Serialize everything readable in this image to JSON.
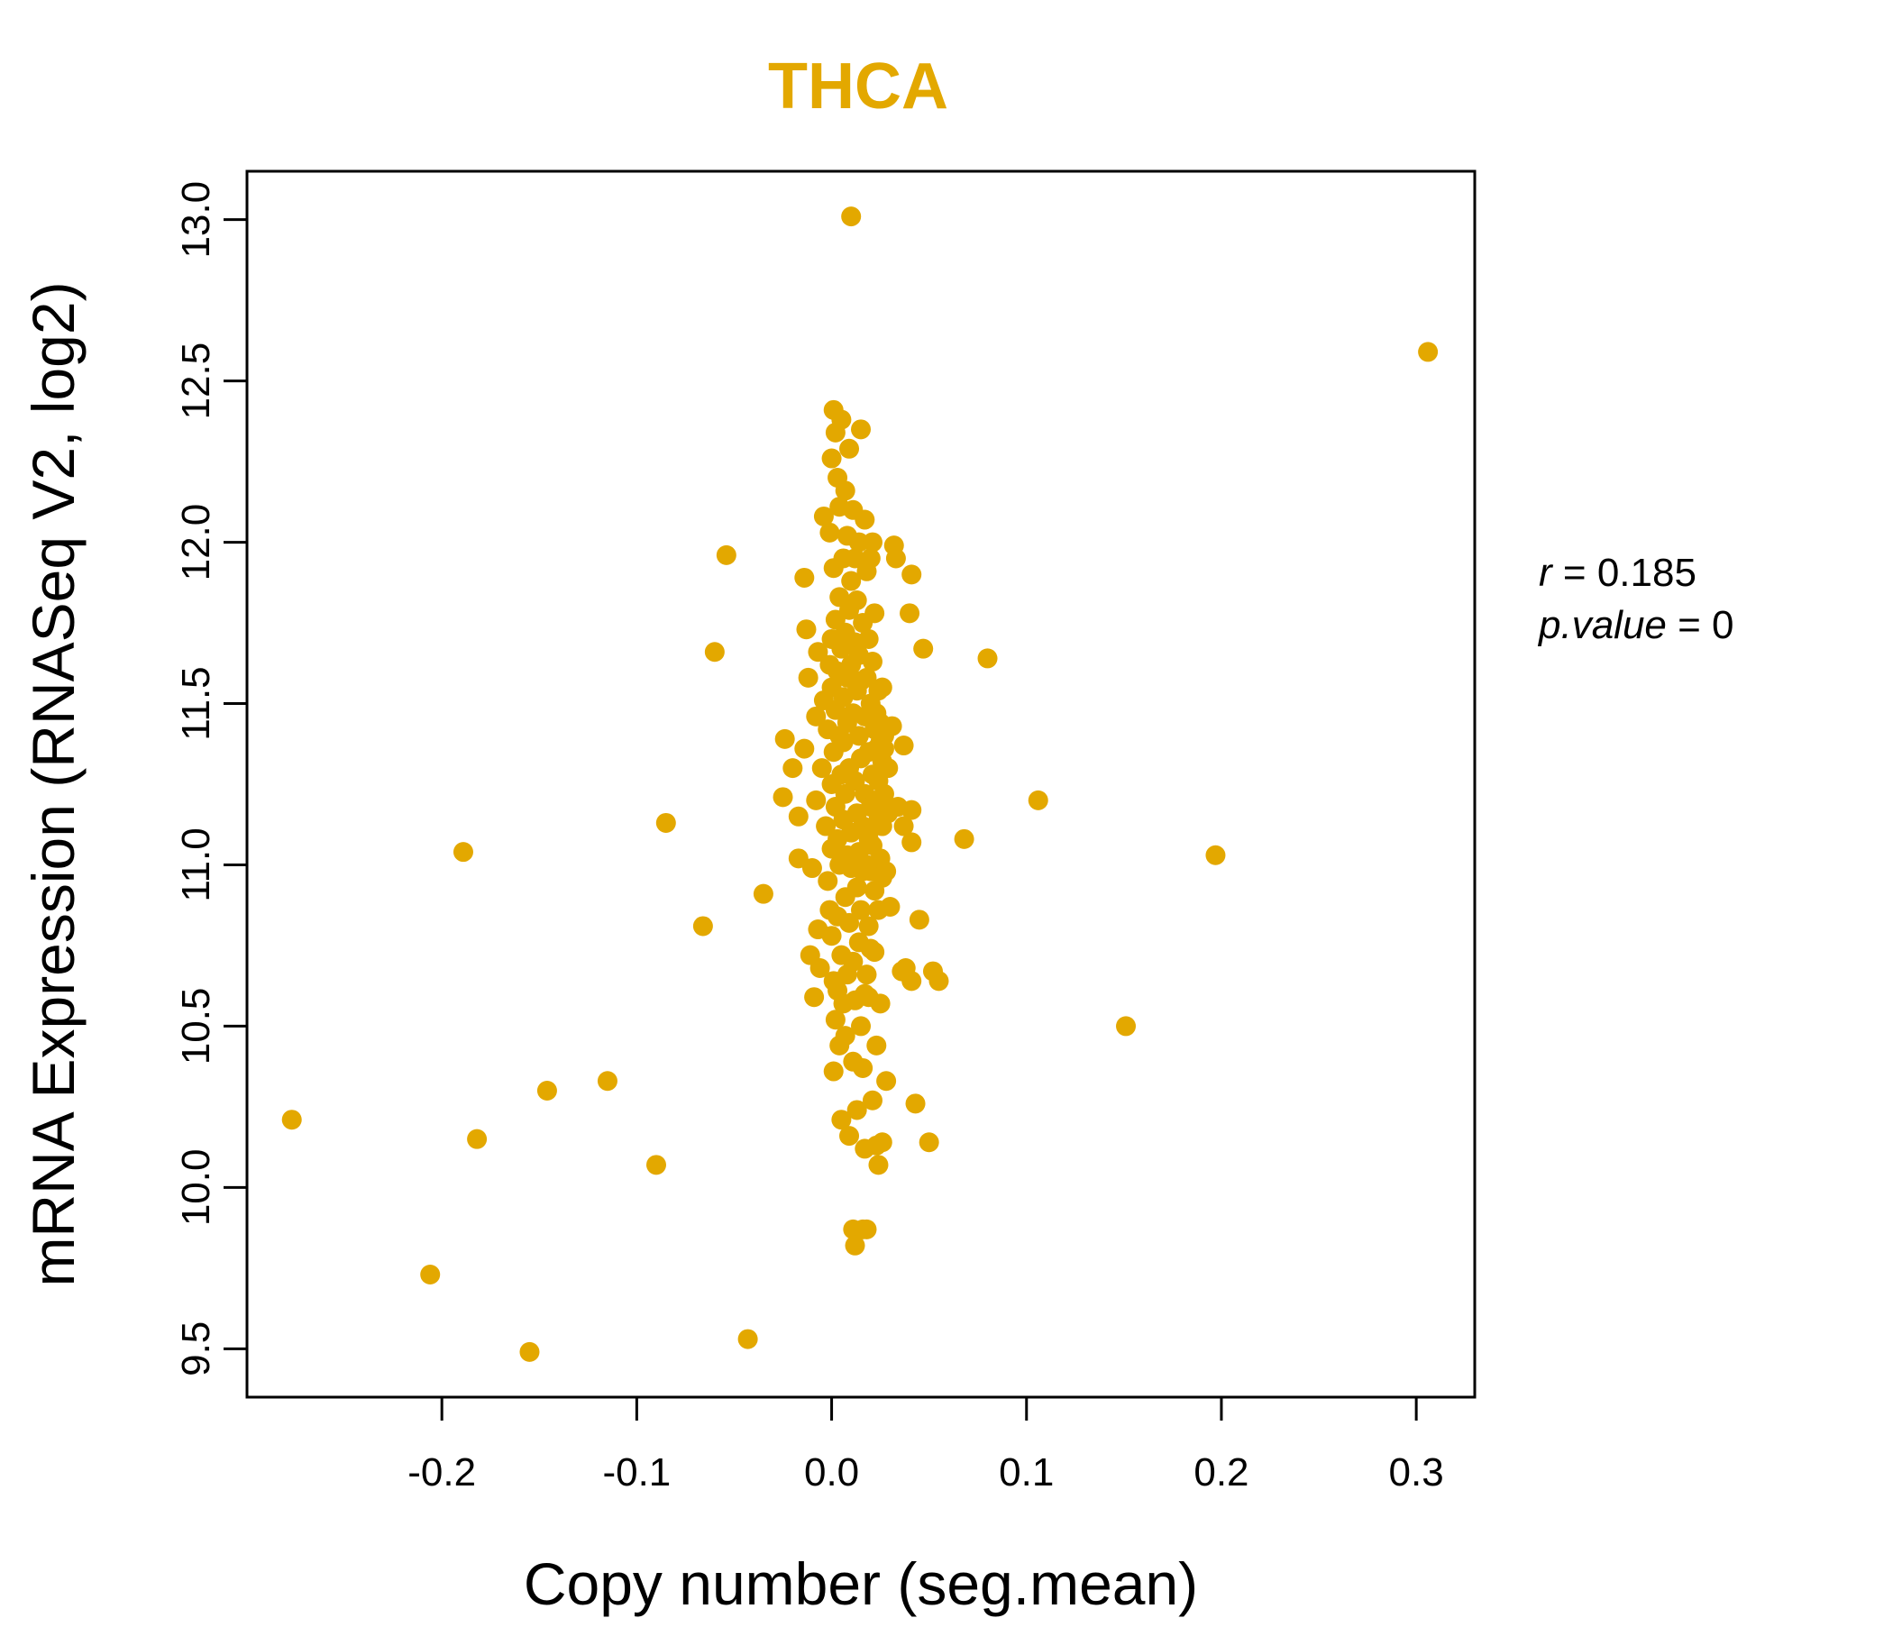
{
  "chart_data": {
    "type": "scatter",
    "title": "THCA",
    "xlabel": "Copy number (seg.mean)",
    "ylabel": "mRNA Expression (RNASeq V2, log2)",
    "xlim": [
      -0.3,
      0.33
    ],
    "ylim": [
      9.35,
      13.15
    ],
    "xticks": [
      -0.2,
      -0.1,
      0.0,
      0.1,
      0.2,
      0.3
    ],
    "xtick_labels": [
      "-0.2",
      "-0.1",
      "0.0",
      "0.1",
      "0.2",
      "0.3"
    ],
    "yticks": [
      9.5,
      10.0,
      10.5,
      11.0,
      11.5,
      12.0,
      12.5,
      13.0
    ],
    "ytick_labels": [
      "9.5",
      "10.0",
      "10.5",
      "11.0",
      "11.5",
      "12.0",
      "12.5",
      "13.0"
    ],
    "point_color": "#E3A800",
    "stats": {
      "r_label": "r",
      "r_value": "0.185",
      "p_label": "p.value",
      "p_value": "0"
    },
    "points": [
      [
        -0.277,
        10.21
      ],
      [
        -0.206,
        9.73
      ],
      [
        -0.189,
        11.04
      ],
      [
        -0.182,
        10.15
      ],
      [
        -0.155,
        9.49
      ],
      [
        -0.146,
        10.3
      ],
      [
        -0.115,
        10.33
      ],
      [
        -0.09,
        10.07
      ],
      [
        -0.085,
        11.13
      ],
      [
        -0.066,
        10.81
      ],
      [
        -0.06,
        11.66
      ],
      [
        -0.054,
        11.96
      ],
      [
        -0.043,
        9.53
      ],
      [
        -0.035,
        10.91
      ],
      [
        -0.024,
        11.39
      ],
      [
        -0.025,
        11.21
      ],
      [
        -0.02,
        11.3
      ],
      [
        -0.017,
        11.15
      ],
      [
        -0.017,
        11.02
      ],
      [
        -0.014,
        11.36
      ],
      [
        -0.014,
        11.89
      ],
      [
        -0.013,
        11.73
      ],
      [
        -0.012,
        11.58
      ],
      [
        -0.011,
        10.72
      ],
      [
        -0.01,
        10.99
      ],
      [
        -0.009,
        10.59
      ],
      [
        -0.008,
        11.46
      ],
      [
        -0.008,
        11.2
      ],
      [
        -0.007,
        10.8
      ],
      [
        -0.007,
        11.66
      ],
      [
        -0.006,
        10.68
      ],
      [
        -0.005,
        11.3
      ],
      [
        -0.004,
        11.51
      ],
      [
        -0.004,
        12.08
      ],
      [
        -0.003,
        11.12
      ],
      [
        -0.002,
        10.95
      ],
      [
        -0.002,
        11.42
      ],
      [
        -0.001,
        12.03
      ],
      [
        -0.001,
        10.86
      ],
      [
        -0.001,
        11.62
      ],
      [
        0.0,
        11.7
      ],
      [
        0.0,
        11.25
      ],
      [
        0.0,
        10.78
      ],
      [
        0.0,
        12.26
      ],
      [
        0.0,
        11.55
      ],
      [
        0.0,
        11.05
      ],
      [
        0.001,
        10.36
      ],
      [
        0.001,
        11.92
      ],
      [
        0.001,
        11.35
      ],
      [
        0.001,
        10.64
      ],
      [
        0.001,
        12.41
      ],
      [
        0.002,
        11.18
      ],
      [
        0.002,
        11.76
      ],
      [
        0.002,
        10.52
      ],
      [
        0.002,
        11.48
      ],
      [
        0.002,
        12.34
      ],
      [
        0.003,
        10.84
      ],
      [
        0.003,
        11.08
      ],
      [
        0.003,
        11.6
      ],
      [
        0.003,
        12.2
      ],
      [
        0.003,
        10.61
      ],
      [
        0.004,
        11.4
      ],
      [
        0.004,
        11.83
      ],
      [
        0.004,
        10.44
      ],
      [
        0.004,
        11.0
      ],
      [
        0.004,
        12.11
      ],
      [
        0.005,
        11.28
      ],
      [
        0.005,
        11.67
      ],
      [
        0.005,
        10.72
      ],
      [
        0.005,
        12.38
      ],
      [
        0.005,
        10.21
      ],
      [
        0.006,
        11.52
      ],
      [
        0.006,
        11.14
      ],
      [
        0.006,
        11.95
      ],
      [
        0.006,
        10.57
      ],
      [
        0.006,
        11.38
      ],
      [
        0.007,
        10.9
      ],
      [
        0.007,
        11.72
      ],
      [
        0.007,
        12.16
      ],
      [
        0.007,
        10.47
      ],
      [
        0.007,
        11.22
      ],
      [
        0.008,
        11.58
      ],
      [
        0.008,
        11.03
      ],
      [
        0.008,
        12.02
      ],
      [
        0.008,
        10.66
      ],
      [
        0.008,
        11.44
      ],
      [
        0.009,
        10.82
      ],
      [
        0.009,
        11.79
      ],
      [
        0.009,
        12.29
      ],
      [
        0.009,
        10.16
      ],
      [
        0.009,
        11.3
      ],
      [
        0.01,
        13.01
      ],
      [
        0.01,
        11.62
      ],
      [
        0.01,
        11.1
      ],
      [
        0.01,
        10.99
      ],
      [
        0.01,
        11.88
      ],
      [
        0.011,
        10.39
      ],
      [
        0.011,
        11.47
      ],
      [
        0.011,
        12.1
      ],
      [
        0.011,
        10.7
      ],
      [
        0.011,
        9.87
      ],
      [
        0.012,
        11.26
      ],
      [
        0.012,
        11.69
      ],
      [
        0.012,
        10.58
      ],
      [
        0.012,
        11.95
      ],
      [
        0.012,
        9.82
      ],
      [
        0.013,
        11.16
      ],
      [
        0.013,
        11.54
      ],
      [
        0.013,
        10.93
      ],
      [
        0.013,
        10.24
      ],
      [
        0.013,
        11.82
      ],
      [
        0.014,
        11.04
      ],
      [
        0.014,
        11.4
      ],
      [
        0.014,
        10.76
      ],
      [
        0.014,
        11.65
      ],
      [
        0.014,
        12.0
      ],
      [
        0.015,
        10.86
      ],
      [
        0.015,
        11.33
      ],
      [
        0.015,
        12.35
      ],
      [
        0.015,
        10.5
      ],
      [
        0.015,
        11.57
      ],
      [
        0.016,
        11.12
      ],
      [
        0.016,
        11.75
      ],
      [
        0.016,
        10.37
      ],
      [
        0.016,
        9.87
      ],
      [
        0.016,
        10.98
      ],
      [
        0.017,
        11.46
      ],
      [
        0.017,
        11.22
      ],
      [
        0.017,
        12.07
      ],
      [
        0.017,
        10.12
      ],
      [
        0.017,
        10.6
      ],
      [
        0.018,
        11.58
      ],
      [
        0.018,
        11.0
      ],
      [
        0.018,
        11.91
      ],
      [
        0.018,
        10.66
      ],
      [
        0.018,
        9.87
      ],
      [
        0.019,
        11.35
      ],
      [
        0.019,
        11.08
      ],
      [
        0.019,
        10.81
      ],
      [
        0.019,
        11.7
      ],
      [
        0.019,
        10.59
      ],
      [
        0.02,
        11.5
      ],
      [
        0.02,
        11.18
      ],
      [
        0.02,
        11.95
      ],
      [
        0.02,
        10.98
      ],
      [
        0.02,
        10.74
      ],
      [
        0.021,
        11.28
      ],
      [
        0.021,
        11.63
      ],
      [
        0.021,
        12.0
      ],
      [
        0.021,
        10.27
      ],
      [
        0.021,
        11.06
      ],
      [
        0.022,
        11.42
      ],
      [
        0.022,
        11.12
      ],
      [
        0.022,
        10.92
      ],
      [
        0.022,
        11.78
      ],
      [
        0.022,
        10.73
      ],
      [
        0.023,
        11.2
      ],
      [
        0.023,
        11.36
      ],
      [
        0.023,
        11.47
      ],
      [
        0.023,
        10.44
      ],
      [
        0.023,
        10.13
      ],
      [
        0.024,
        11.14
      ],
      [
        0.024,
        11.26
      ],
      [
        0.024,
        11.54
      ],
      [
        0.024,
        10.86
      ],
      [
        0.024,
        10.07
      ],
      [
        0.025,
        11.02
      ],
      [
        0.025,
        11.38
      ],
      [
        0.025,
        11.18
      ],
      [
        0.025,
        11.44
      ],
      [
        0.025,
        10.57
      ],
      [
        0.026,
        11.32
      ],
      [
        0.026,
        11.55
      ],
      [
        0.026,
        11.12
      ],
      [
        0.026,
        10.96
      ],
      [
        0.026,
        10.14
      ],
      [
        0.027,
        11.4
      ],
      [
        0.027,
        11.22
      ],
      [
        0.027,
        11.36
      ],
      [
        0.028,
        10.33
      ],
      [
        0.028,
        10.98
      ],
      [
        0.029,
        11.16
      ],
      [
        0.029,
        11.3
      ],
      [
        0.03,
        10.87
      ],
      [
        0.031,
        11.43
      ],
      [
        0.032,
        11.99
      ],
      [
        0.033,
        11.95
      ],
      [
        0.034,
        11.18
      ],
      [
        0.036,
        10.67
      ],
      [
        0.037,
        11.37
      ],
      [
        0.037,
        11.12
      ],
      [
        0.038,
        10.68
      ],
      [
        0.04,
        11.78
      ],
      [
        0.041,
        11.9
      ],
      [
        0.041,
        11.17
      ],
      [
        0.041,
        10.64
      ],
      [
        0.041,
        11.07
      ],
      [
        0.043,
        10.26
      ],
      [
        0.045,
        10.83
      ],
      [
        0.047,
        11.67
      ],
      [
        0.05,
        10.14
      ],
      [
        0.052,
        10.67
      ],
      [
        0.055,
        10.64
      ],
      [
        0.068,
        11.08
      ],
      [
        0.08,
        11.64
      ],
      [
        0.106,
        11.2
      ],
      [
        0.151,
        10.5
      ],
      [
        0.197,
        11.03
      ],
      [
        0.306,
        12.59
      ]
    ]
  }
}
